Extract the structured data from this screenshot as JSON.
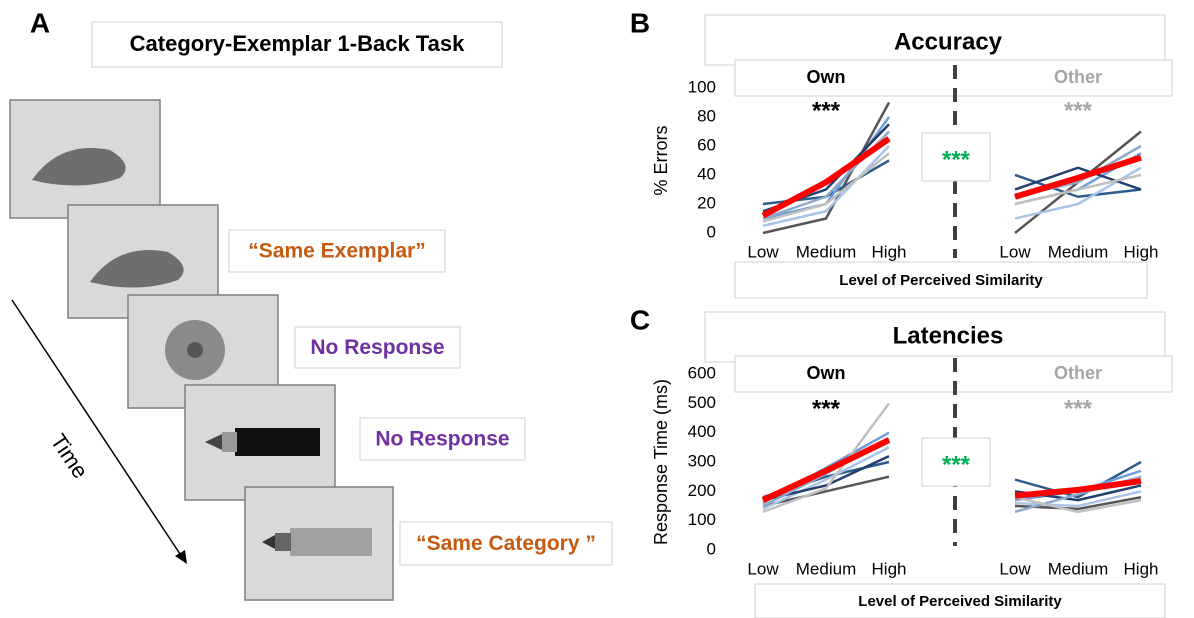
{
  "panel_a": {
    "label": "A",
    "title": "Category-Exemplar 1-Back Task",
    "time_label": "Time",
    "responses": [
      {
        "text": "“Same Exemplar”",
        "color": "#c55a11"
      },
      {
        "text": "No Response",
        "color": "#7030a0"
      },
      {
        "text": "No Response",
        "color": "#7030a0"
      },
      {
        "text": "“Same Category ”",
        "color": "#c55a11"
      }
    ]
  },
  "chart_data": [
    {
      "type": "line",
      "panel_label": "B",
      "title": "Accuracy",
      "y_label": "% Errors",
      "x_label": "Level of Perceived Similarity",
      "categories": [
        "Low",
        "Medium",
        "High",
        null,
        "Low",
        "Medium",
        "High"
      ],
      "ylim": [
        0,
        100
      ],
      "yticks": [
        0,
        20,
        40,
        60,
        80,
        100
      ],
      "groups": [
        {
          "label": "Own",
          "stars": "***",
          "color": "#000000"
        },
        {
          "label": "Other",
          "stars": "***",
          "color": "#a6a6a6"
        }
      ],
      "contrast_stars": "***",
      "contrast_color": "#00b050",
      "series": [
        {
          "color": "#555555",
          "values": [
            0,
            10,
            90,
            null,
            0,
            35,
            70
          ]
        },
        {
          "color": "#2e5c8a",
          "values": [
            20,
            25,
            50,
            null,
            40,
            25,
            30
          ]
        },
        {
          "color": "#6f9fd8",
          "values": [
            10,
            20,
            80,
            null,
            20,
            30,
            55
          ]
        },
        {
          "color": "#a9c4e8",
          "values": [
            5,
            15,
            60,
            null,
            10,
            20,
            45
          ]
        },
        {
          "color": "#1f3f6e",
          "values": [
            15,
            30,
            75,
            null,
            30,
            45,
            30
          ]
        },
        {
          "color": "#8ea9c8",
          "values": [
            10,
            25,
            70,
            null,
            25,
            35,
            60
          ]
        },
        {
          "color": "#c0c0c0",
          "values": [
            8,
            20,
            55,
            null,
            20,
            30,
            40
          ]
        },
        {
          "color": "#ff0000",
          "line_width": 6,
          "values": [
            12,
            35,
            65,
            null,
            25,
            38,
            52
          ]
        }
      ]
    },
    {
      "type": "line",
      "panel_label": "C",
      "title": "Latencies",
      "y_label": "Response Time (ms)",
      "x_label": "Level of Perceived Similarity",
      "categories": [
        "Low",
        "Medium",
        "High",
        null,
        "Low",
        "Medium",
        "High"
      ],
      "ylim": [
        0,
        600
      ],
      "yticks": [
        0,
        100,
        200,
        300,
        400,
        500,
        600
      ],
      "groups": [
        {
          "label": "Own",
          "stars": "***",
          "color": "#000000"
        },
        {
          "label": "Other",
          "stars": "***",
          "color": "#a6a6a6"
        }
      ],
      "contrast_stars": "***",
      "contrast_color": "#00b050",
      "series": [
        {
          "color": "#555555",
          "values": [
            150,
            200,
            250,
            null,
            150,
            140,
            180
          ]
        },
        {
          "color": "#2e5c8a",
          "values": [
            180,
            250,
            300,
            null,
            240,
            180,
            300
          ]
        },
        {
          "color": "#6f9fd8",
          "values": [
            160,
            280,
            400,
            null,
            170,
            200,
            270
          ]
        },
        {
          "color": "#a9c4e8",
          "values": [
            140,
            240,
            350,
            null,
            160,
            150,
            200
          ]
        },
        {
          "color": "#1f3f6e",
          "values": [
            170,
            220,
            320,
            null,
            200,
            170,
            220
          ]
        },
        {
          "color": "#8ea9c8",
          "values": [
            150,
            260,
            380,
            null,
            130,
            190,
            250
          ]
        },
        {
          "color": "#c0c0c0",
          "values": [
            130,
            210,
            500,
            null,
            180,
            130,
            170
          ]
        },
        {
          "color": "#ff0000",
          "line_width": 6,
          "values": [
            170,
            270,
            375,
            null,
            185,
            205,
            235
          ]
        }
      ]
    }
  ]
}
